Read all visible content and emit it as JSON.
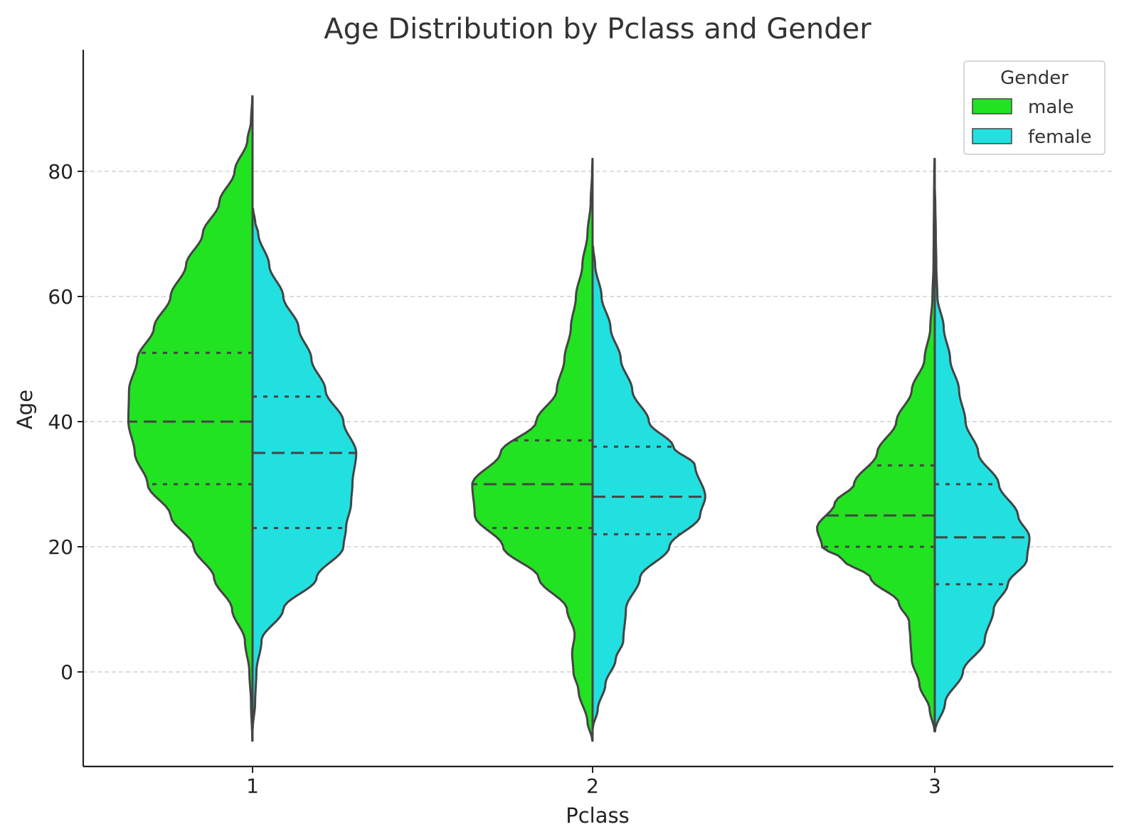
{
  "chart_data": {
    "type": "violin",
    "title": "Age Distribution by Pclass and Gender",
    "xlabel": "Pclass",
    "ylabel": "Age",
    "categories": [
      "1",
      "2",
      "3"
    ],
    "yticks": [
      0,
      20,
      40,
      60,
      80
    ],
    "ylim": [
      -16.5,
      97
    ],
    "grid": "horizontal dashed",
    "legend": {
      "title": "Gender",
      "placement": "top-right",
      "entries": [
        "male",
        "female"
      ]
    },
    "series": [
      {
        "name": "male",
        "side": "left",
        "color": "#22e322",
        "violins": [
          {
            "category": "1",
            "min": -11,
            "max": 92,
            "q1": 30,
            "median": 40,
            "q3": 51,
            "profile": [
              [
                -11,
                0.002
              ],
              [
                -5,
                0.012
              ],
              [
                0,
                0.025
              ],
              [
                5,
                0.06
              ],
              [
                10,
                0.16
              ],
              [
                15,
                0.3
              ],
              [
                20,
                0.46
              ],
              [
                25,
                0.64
              ],
              [
                30,
                0.82
              ],
              [
                35,
                0.92
              ],
              [
                40,
                0.97
              ],
              [
                45,
                0.965
              ],
              [
                50,
                0.9
              ],
              [
                55,
                0.77
              ],
              [
                60,
                0.64
              ],
              [
                65,
                0.52
              ],
              [
                70,
                0.39
              ],
              [
                75,
                0.26
              ],
              [
                80,
                0.14
              ],
              [
                85,
                0.04
              ],
              [
                88,
                0.012
              ],
              [
                92,
                0.002
              ]
            ]
          },
          {
            "category": "2",
            "min": -11,
            "max": 82,
            "q1": 23,
            "median": 30,
            "q3": 37,
            "profile": [
              [
                -11,
                0.002
              ],
              [
                -8,
                0.04
              ],
              [
                -3,
                0.11
              ],
              [
                0,
                0.15
              ],
              [
                3,
                0.16
              ],
              [
                6,
                0.14
              ],
              [
                10,
                0.2
              ],
              [
                15,
                0.42
              ],
              [
                20,
                0.7
              ],
              [
                25,
                0.92
              ],
              [
                30,
                0.94
              ],
              [
                35,
                0.72
              ],
              [
                40,
                0.44
              ],
              [
                45,
                0.28
              ],
              [
                50,
                0.22
              ],
              [
                55,
                0.17
              ],
              [
                60,
                0.13
              ],
              [
                65,
                0.08
              ],
              [
                70,
                0.04
              ],
              [
                75,
                0.015
              ],
              [
                80,
                0.004
              ],
              [
                82,
                0.001
              ]
            ]
          },
          {
            "category": "3",
            "min": -9.5,
            "max": 82,
            "q1": 20,
            "median": 25,
            "q3": 33,
            "profile": [
              [
                -9.5,
                0.002
              ],
              [
                -6,
                0.04
              ],
              [
                -2,
                0.12
              ],
              [
                2,
                0.18
              ],
              [
                5,
                0.19
              ],
              [
                8,
                0.2
              ],
              [
                11,
                0.28
              ],
              [
                15,
                0.5
              ],
              [
                18,
                0.72
              ],
              [
                20,
                0.88
              ],
              [
                23,
                0.92
              ],
              [
                27,
                0.78
              ],
              [
                30,
                0.63
              ],
              [
                35,
                0.45
              ],
              [
                40,
                0.3
              ],
              [
                45,
                0.18
              ],
              [
                50,
                0.08
              ],
              [
                55,
                0.035
              ],
              [
                60,
                0.018
              ],
              [
                65,
                0.01
              ],
              [
                70,
                0.008
              ],
              [
                75,
                0.006
              ],
              [
                80,
                0.004
              ],
              [
                82,
                0.002
              ]
            ]
          }
        ]
      },
      {
        "name": "female",
        "side": "right",
        "color": "#22e0e0",
        "violins": [
          {
            "category": "1",
            "min": -9,
            "max": 74,
            "q1": 23,
            "median": 35,
            "q3": 44,
            "profile": [
              [
                -9,
                0.002
              ],
              [
                -5,
                0.02
              ],
              [
                0,
                0.03
              ],
              [
                5,
                0.07
              ],
              [
                10,
                0.24
              ],
              [
                15,
                0.5
              ],
              [
                20,
                0.71
              ],
              [
                23,
                0.73
              ],
              [
                27,
                0.77
              ],
              [
                30,
                0.78
              ],
              [
                35,
                0.81
              ],
              [
                40,
                0.71
              ],
              [
                45,
                0.57
              ],
              [
                50,
                0.46
              ],
              [
                55,
                0.36
              ],
              [
                60,
                0.24
              ],
              [
                65,
                0.13
              ],
              [
                70,
                0.045
              ],
              [
                72,
                0.02
              ],
              [
                74,
                0.004
              ]
            ]
          },
          {
            "category": "2",
            "min": -9,
            "max": 68,
            "q1": 22,
            "median": 28,
            "q3": 36,
            "profile": [
              [
                -9,
                0.002
              ],
              [
                -6,
                0.04
              ],
              [
                -2,
                0.1
              ],
              [
                2,
                0.18
              ],
              [
                5,
                0.24
              ],
              [
                10,
                0.26
              ],
              [
                15,
                0.37
              ],
              [
                20,
                0.6
              ],
              [
                25,
                0.84
              ],
              [
                28,
                0.88
              ],
              [
                33,
                0.8
              ],
              [
                36,
                0.63
              ],
              [
                40,
                0.44
              ],
              [
                45,
                0.31
              ],
              [
                50,
                0.22
              ],
              [
                55,
                0.14
              ],
              [
                60,
                0.07
              ],
              [
                65,
                0.02
              ],
              [
                68,
                0.004
              ]
            ]
          },
          {
            "category": "3",
            "min": -9.5,
            "max": 77,
            "q1": 14,
            "median": 21.5,
            "q3": 30,
            "profile": [
              [
                -9.5,
                0.002
              ],
              [
                -5,
                0.08
              ],
              [
                0,
                0.22
              ],
              [
                5,
                0.39
              ],
              [
                10,
                0.46
              ],
              [
                14,
                0.57
              ],
              [
                18,
                0.72
              ],
              [
                21.5,
                0.74
              ],
              [
                25,
                0.65
              ],
              [
                30,
                0.5
              ],
              [
                35,
                0.34
              ],
              [
                40,
                0.24
              ],
              [
                45,
                0.19
              ],
              [
                50,
                0.12
              ],
              [
                55,
                0.07
              ],
              [
                60,
                0.02
              ],
              [
                65,
                0.012
              ],
              [
                70,
                0.008
              ],
              [
                75,
                0.004
              ],
              [
                77,
                0.001
              ]
            ]
          }
        ]
      }
    ]
  }
}
